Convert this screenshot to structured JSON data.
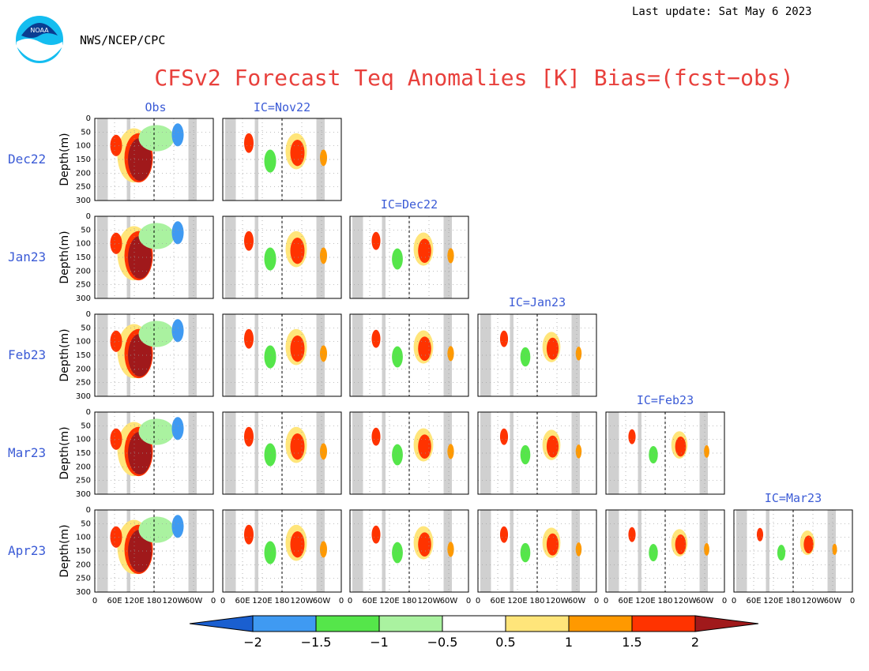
{
  "header": {
    "last_update": "Last update: Sat May 6 2023",
    "agency": "NWS/NCEP/CPC",
    "title": "CFSv2 Forecast Teq Anomalies [K] Bias=(fcst−obs)",
    "logo_text": "NOAA"
  },
  "colors": {
    "title": "#e8403c",
    "labels": "#3b5bd6",
    "land": "#d0d0d0",
    "warm_strong": "#a0191b",
    "warm": "#ff3300",
    "warm_mid": "#ff9900",
    "warm_weak": "#ffe57a",
    "cool_weak": "#aaf2a0",
    "cool": "#55e64a",
    "cool_mid": "#3f9af2",
    "cool_strong": "#1a5fd0"
  },
  "chart_data": {
    "type": "heatmap",
    "variable": "Teq Anomalies [K]",
    "ylabel": "Depth(m)",
    "yticks": [
      "0",
      "50",
      "100",
      "150",
      "200",
      "250",
      "300"
    ],
    "xticks": [
      "0",
      "60E",
      "120E",
      "180",
      "120W",
      "60W",
      "0"
    ],
    "columns": [
      "Obs",
      "IC=Nov22",
      "IC=Dec22",
      "IC=Jan23",
      "IC=Feb23",
      "IC=Mar23"
    ],
    "rows": [
      "Dec22",
      "Jan23",
      "Feb23",
      "Mar23",
      "Apr23"
    ],
    "legend": {
      "levels": [
        "-2",
        "-1.5",
        "-1",
        "-0.5",
        "0.5",
        "1",
        "1.5",
        "2"
      ],
      "colors": [
        "#1a5fd0",
        "#3f9af2",
        "#55e64a",
        "#aaf2a0",
        "#ffffff",
        "#ffe57a",
        "#ff9900",
        "#ff3300",
        "#a0191b"
      ]
    }
  }
}
